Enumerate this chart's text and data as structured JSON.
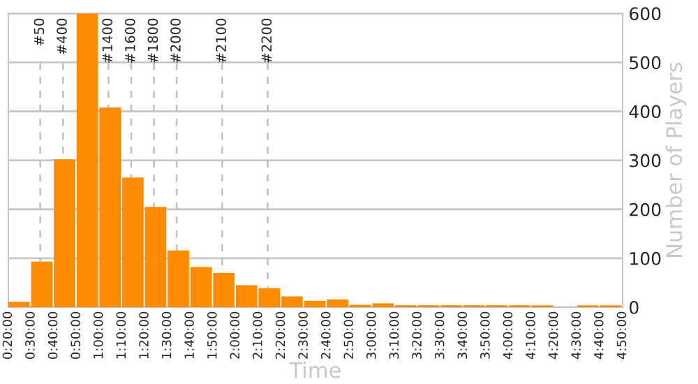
{
  "chart_data": {
    "type": "histogram",
    "xlabel": "Time",
    "ylabel": "Number of Players",
    "bins": [
      20,
      30,
      40,
      50,
      60,
      70,
      80,
      90,
      100,
      110,
      120,
      130,
      140,
      150,
      160,
      170,
      180,
      190,
      200,
      210,
      220,
      230,
      240,
      250,
      260,
      270,
      280,
      290
    ],
    "values": [
      11,
      93,
      302,
      600,
      408,
      265,
      205,
      116,
      82,
      70,
      45,
      39,
      22,
      13,
      16,
      5,
      8,
      4,
      4,
      4,
      4,
      4,
      4,
      4,
      0,
      4,
      4
    ],
    "color": "#ff8c00",
    "xlim": [
      20,
      290
    ],
    "xticks": [
      {
        "value": 20,
        "label": "0:20:00"
      },
      {
        "value": 30,
        "label": "0:30:00"
      },
      {
        "value": 40,
        "label": "0:40:00"
      },
      {
        "value": 50,
        "label": "0:50:00"
      },
      {
        "value": 60,
        "label": "1:00:00"
      },
      {
        "value": 70,
        "label": "1:10:00"
      },
      {
        "value": 80,
        "label": "1:20:00"
      },
      {
        "value": 90,
        "label": "1:30:00"
      },
      {
        "value": 100,
        "label": "1:40:00"
      },
      {
        "value": 110,
        "label": "1:50:00"
      },
      {
        "value": 120,
        "label": "2:00:00"
      },
      {
        "value": 130,
        "label": "2:10:00"
      },
      {
        "value": 140,
        "label": "2:20:00"
      },
      {
        "value": 150,
        "label": "2:30:00"
      },
      {
        "value": 160,
        "label": "2:40:00"
      },
      {
        "value": 170,
        "label": "2:50:00"
      },
      {
        "value": 180,
        "label": "3:00:00"
      },
      {
        "value": 190,
        "label": "3:10:00"
      },
      {
        "value": 200,
        "label": "3:20:00"
      },
      {
        "value": 210,
        "label": "3:30:00"
      },
      {
        "value": 220,
        "label": "3:40:00"
      },
      {
        "value": 230,
        "label": "3:50:00"
      },
      {
        "value": 240,
        "label": "4:00:00"
      },
      {
        "value": 250,
        "label": "4:10:00"
      },
      {
        "value": 260,
        "label": "4:20:00"
      },
      {
        "value": 270,
        "label": "4:30:00"
      },
      {
        "value": 280,
        "label": "4:40:00"
      },
      {
        "value": 290,
        "label": "4:50:00"
      }
    ],
    "ylim": [
      0,
      600
    ],
    "yticks": [
      0,
      100,
      200,
      300,
      400,
      500,
      600
    ],
    "grid": "y",
    "ref_lines": [
      {
        "axis": "x",
        "value": 34,
        "color": "#c0c0c0",
        "line_style": "dashed"
      },
      {
        "axis": "x",
        "value": 44,
        "color": "#c0c0c0",
        "line_style": "dashed"
      },
      {
        "axis": "x",
        "value": 64,
        "color": "#c0c0c0",
        "line_style": "dashed"
      },
      {
        "axis": "x",
        "value": 74,
        "color": "#c0c0c0",
        "line_style": "dashed"
      },
      {
        "axis": "x",
        "value": 84,
        "color": "#c0c0c0",
        "line_style": "dashed"
      },
      {
        "axis": "x",
        "value": 94,
        "color": "#c0c0c0",
        "line_style": "dashed"
      },
      {
        "axis": "x",
        "value": 114,
        "color": "#c0c0c0",
        "line_style": "dashed"
      },
      {
        "axis": "x",
        "value": 134,
        "color": "#c0c0c0",
        "line_style": "dashed"
      }
    ],
    "annotations": [
      "#50",
      "#400",
      "#1400",
      "#1600",
      "#1800",
      "#2000",
      "#2100",
      "#2200"
    ]
  }
}
